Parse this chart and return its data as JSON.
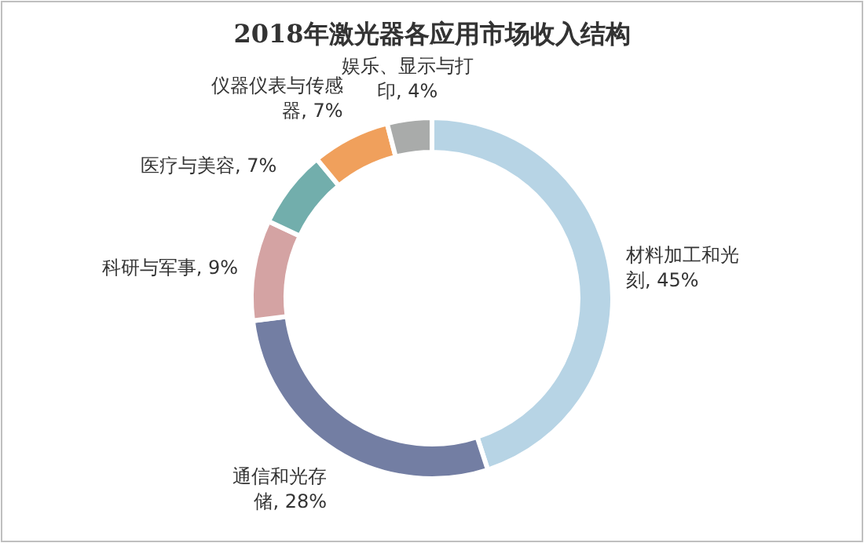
{
  "chart_data": {
    "type": "donut",
    "title": "2018年激光器各应用市场收入结构",
    "categories": [
      "材料加工和光刻",
      "通信和光存储",
      "科研与军事",
      "医疗与美容",
      "仪器仪表与传感器",
      "娱乐、显示与打印"
    ],
    "values": [
      45,
      28,
      9,
      7,
      7,
      4
    ],
    "value_labels": [
      "45%",
      "28%",
      "9%",
      "7%",
      "7%",
      "4%"
    ],
    "colors": [
      "#b7d4e5",
      "#737ea3",
      "#d4a3a3",
      "#72aeac",
      "#f0a05c",
      "#a9abaa"
    ],
    "legend": false
  }
}
